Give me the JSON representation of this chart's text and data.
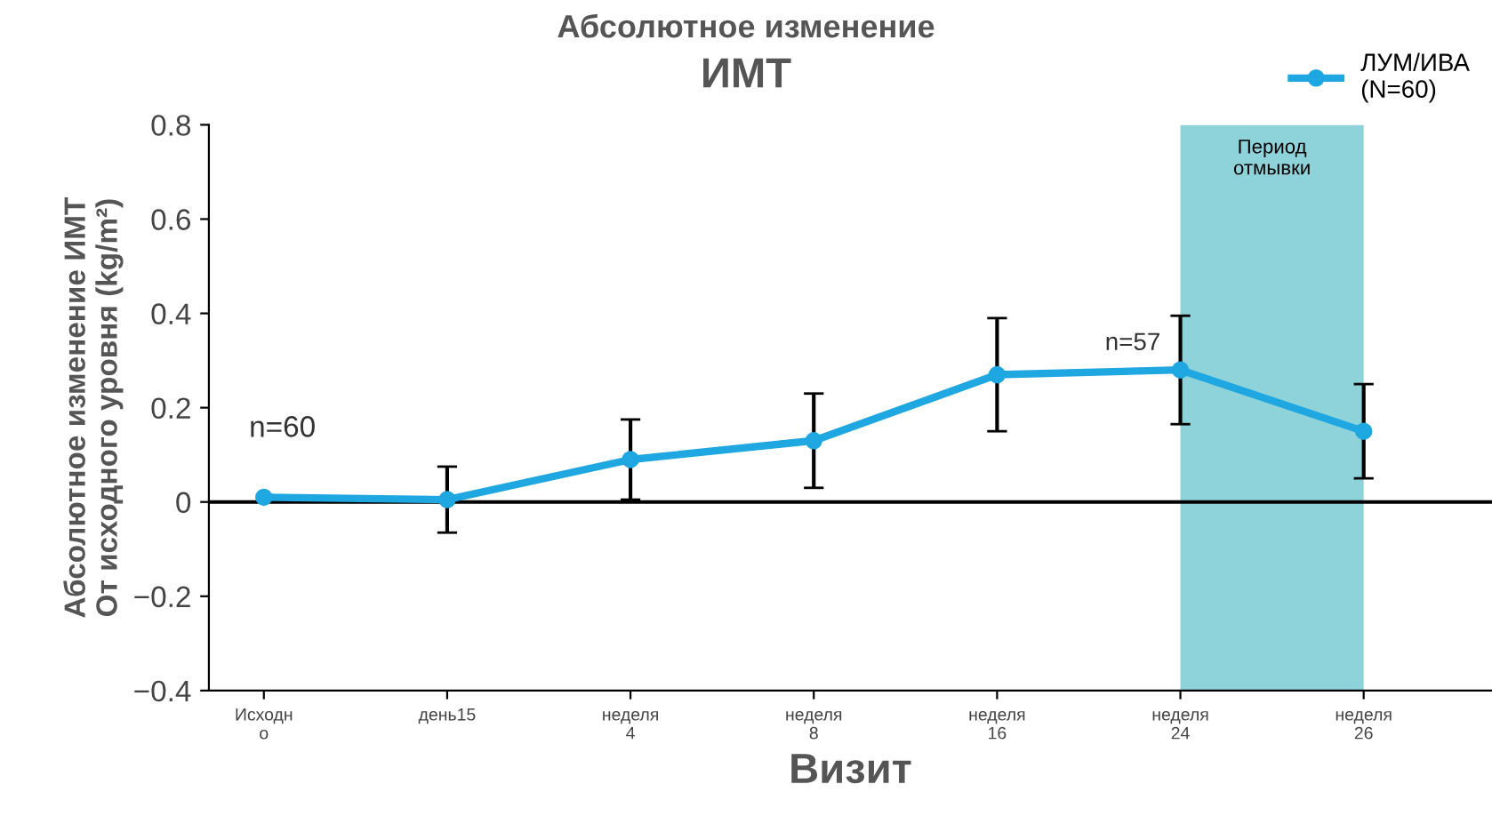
{
  "chart_data": {
    "type": "line",
    "title": "Абсолютное изменение",
    "subtitle": "ИМТ",
    "xlabel": "Визит",
    "ylabel": "Абсолютное изменение ИМТ\nОт исходного уровня (kg/m²)",
    "categories": [
      "Исходн\nо",
      "день15",
      "неделя\n4",
      "неделя\n8",
      "неделя\n16",
      "неделя\n24",
      "неделя\n26"
    ],
    "series": [
      {
        "name": "ЛУМ/ИВА\n(N=60)",
        "color": "#1ea7e1",
        "values": [
          0.01,
          0.005,
          0.09,
          0.13,
          0.27,
          0.28,
          0.15
        ],
        "errors": [
          null,
          0.07,
          0.085,
          0.1,
          0.12,
          0.115,
          0.1
        ]
      }
    ],
    "ylim": [
      -0.4,
      0.8
    ],
    "yticks": [
      {
        "value": -0.4,
        "label": "−0.4"
      },
      {
        "value": -0.2,
        "label": "−0.2"
      },
      0,
      0.2,
      0.4,
      0.6,
      0.8
    ],
    "ref_lines": [
      {
        "axis": "y",
        "value": 0,
        "color": "#000000"
      }
    ],
    "bands": [
      {
        "axis": "x",
        "from": "неделя\n24",
        "to": "неделя\n26",
        "label": "Период\nотмывки",
        "color": "#8fd3da"
      }
    ],
    "annotations": [
      {
        "text": "n=60",
        "x": "Исходн\nо",
        "y": 0.01
      },
      {
        "text": "n=57",
        "x": "неделя\n24",
        "y": 0.28
      }
    ],
    "marker": "circle",
    "line_style": "solid",
    "grid": false,
    "legend": "top right"
  }
}
